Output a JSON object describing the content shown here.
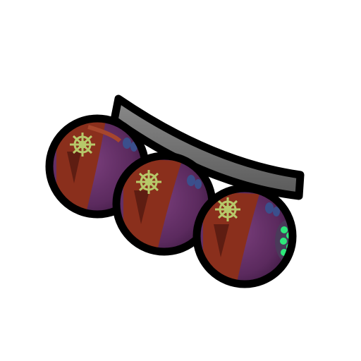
{
  "item": {
    "icon": "bomb-cluster-icon",
    "orb_count": 3,
    "colors": {
      "outline": "#000000",
      "orb_body": "#5b2a5e",
      "orb_highlight": "#7b3f7d",
      "band": "#8a2f1c",
      "band_dark": "#5e1d12",
      "emblem": "#b7c96a",
      "light_blue": "#3b4f8c",
      "light_green": "#2ee87a",
      "bar": "#6a6a6a",
      "bar_highlight": "#8a8a8a"
    }
  }
}
